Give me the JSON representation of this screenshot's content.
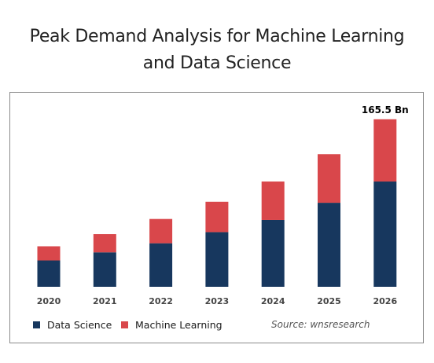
{
  "title_line1": "Peak Demand Analysis for Machine Learning",
  "title_line2": "and Data Science",
  "source": "Source: wnsresearch",
  "colors": {
    "data_science": "#17375e",
    "machine_learning": "#d9474b"
  },
  "chart_data": {
    "type": "bar",
    "stacked": true,
    "categories": [
      "2020",
      "2021",
      "2022",
      "2023",
      "2024",
      "2025",
      "2026"
    ],
    "series": [
      {
        "name": "Data Science",
        "values": [
          26,
          34,
          43,
          54,
          66,
          83,
          104
        ]
      },
      {
        "name": "Machine Learning",
        "values": [
          14,
          18,
          24,
          30,
          38,
          48,
          61.5
        ]
      }
    ],
    "annotation": {
      "category": "2026",
      "text": "165.5 Bn"
    },
    "ylim": [
      0,
      170
    ],
    "grid": false,
    "legend": "bottom-left"
  }
}
